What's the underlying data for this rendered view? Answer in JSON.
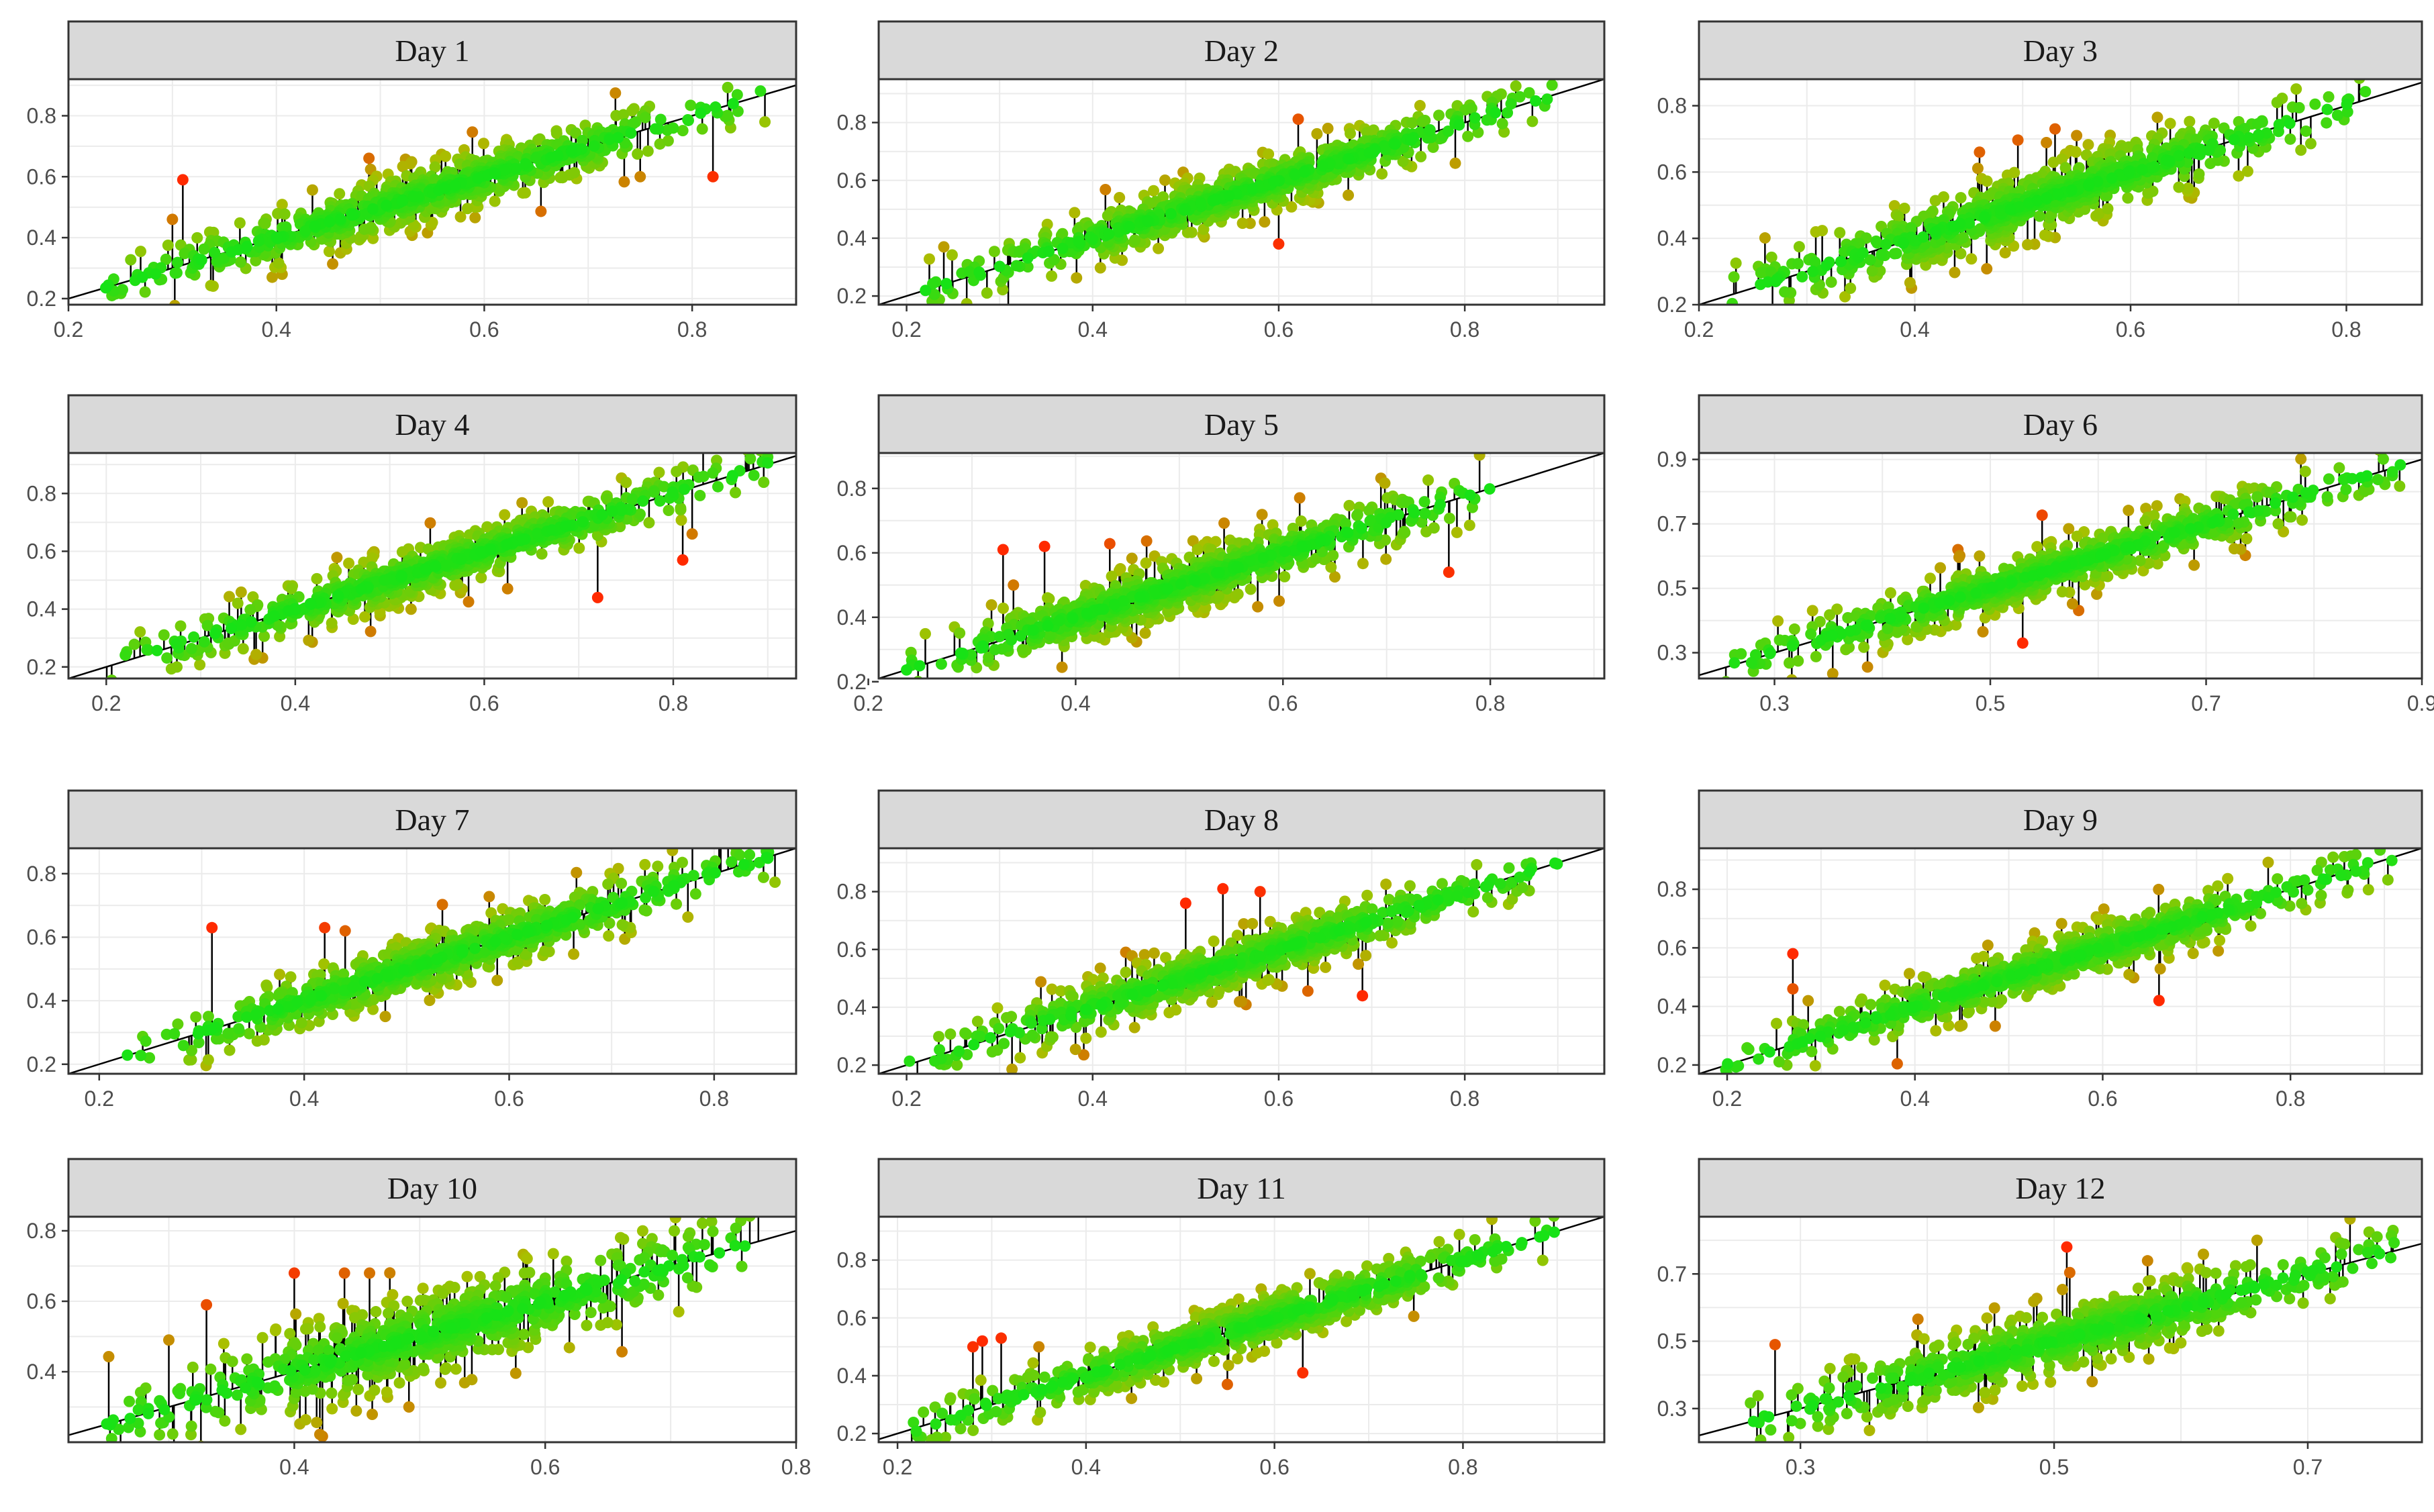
{
  "figure": {
    "type": "faceted-scatter",
    "description_colors": {
      "point_good": "#16e216",
      "point_mid": "#a8c000",
      "point_bad": "#ff2a00",
      "segment": "#000000",
      "identity_line": "#000000",
      "strip_fill": "#d9d9d9",
      "grid_major": "#ebebeb",
      "panel_border": "#333333"
    }
  },
  "chart_data": [
    {
      "type": "scatter",
      "title": "Day 1",
      "xlim": [
        0.2,
        0.9
      ],
      "ylim": [
        0.18,
        0.92
      ],
      "x_ticks": [
        0.2,
        0.4,
        0.6,
        0.8
      ],
      "x_tick_labels": [
        "0.2",
        "0.4",
        "0.6",
        "0.8"
      ],
      "y_ticks": [
        0.2,
        0.4,
        0.6,
        0.8
      ],
      "y_tick_labels": [
        "0.2",
        "0.4",
        "0.6",
        "0.8"
      ],
      "reference_line": "y = x",
      "n_points": 700,
      "spread": 0.045,
      "x_range": [
        0.23,
        0.87
      ],
      "outliers": [
        [
          0.31,
          0.59
        ],
        [
          0.82,
          0.6
        ],
        [
          0.87,
          0.78
        ],
        [
          0.75,
          0.6
        ],
        [
          0.3,
          0.46
        ]
      ]
    },
    {
      "type": "scatter",
      "title": "Day 2",
      "xlim": [
        0.17,
        0.95
      ],
      "ylim": [
        0.17,
        0.95
      ],
      "x_ticks": [
        0.2,
        0.4,
        0.6,
        0.8
      ],
      "x_tick_labels": [
        "0.2",
        "0.4",
        "0.6",
        "0.8"
      ],
      "y_ticks": [
        0.2,
        0.4,
        0.6,
        0.8
      ],
      "y_tick_labels": [
        "0.2",
        "0.4",
        "0.6",
        "0.8"
      ],
      "reference_line": "y = x",
      "n_points": 700,
      "spread": 0.045,
      "x_range": [
        0.22,
        0.9
      ],
      "outliers": [
        [
          0.6,
          0.38
        ],
        [
          0.24,
          0.37
        ],
        [
          0.47,
          0.49
        ]
      ]
    },
    {
      "type": "scatter",
      "title": "Day 3",
      "xlim": [
        0.2,
        0.87
      ],
      "ylim": [
        0.2,
        0.88
      ],
      "x_ticks": [
        0.2,
        0.4,
        0.6,
        0.8
      ],
      "x_tick_labels": [
        "0.2",
        "0.4",
        "0.6",
        "0.8"
      ],
      "y_ticks": [
        0.2,
        0.4,
        0.6,
        0.8
      ],
      "y_tick_labels": [
        "0.2",
        "0.4",
        "0.6",
        "0.8"
      ],
      "reference_line": "y = x",
      "n_points": 700,
      "spread": 0.05,
      "x_range": [
        0.23,
        0.82
      ],
      "outliers": [
        [
          0.46,
          0.66
        ],
        [
          0.53,
          0.73
        ],
        [
          0.55,
          0.71
        ]
      ]
    },
    {
      "type": "scatter",
      "title": "Day 4",
      "xlim": [
        0.16,
        0.93
      ],
      "ylim": [
        0.16,
        0.94
      ],
      "x_ticks": [
        0.2,
        0.4,
        0.6,
        0.8
      ],
      "x_tick_labels": [
        "0.2",
        "0.4",
        "0.6",
        "0.8"
      ],
      "y_ticks": [
        0.2,
        0.4,
        0.6,
        0.8
      ],
      "y_tick_labels": [
        "0.2",
        "0.4",
        "0.6",
        "0.8"
      ],
      "reference_line": "y = x",
      "n_points": 700,
      "spread": 0.045,
      "x_range": [
        0.2,
        0.9
      ],
      "outliers": [
        [
          0.72,
          0.44
        ],
        [
          0.81,
          0.57
        ],
        [
          0.82,
          0.66
        ]
      ]
    },
    {
      "type": "scatter",
      "title": "Day 5",
      "xlim": [
        0.21,
        0.91
      ],
      "ylim": [
        0.21,
        0.91
      ],
      "x_ticks": [
        0.2,
        0.4,
        0.6,
        0.8
      ],
      "x_tick_labels": [
        "0.2",
        "0.4",
        "0.6",
        "0.8"
      ],
      "y_ticks": [
        0.2,
        0.4,
        0.6,
        0.8
      ],
      "y_tick_labels": [
        "0.2",
        "0.4",
        "0.6",
        "0.8"
      ],
      "reference_line": "y = x",
      "n_points": 700,
      "spread": 0.045,
      "x_range": [
        0.23,
        0.8
      ],
      "outliers": [
        [
          0.33,
          0.61
        ],
        [
          0.37,
          0.62
        ],
        [
          0.34,
          0.5
        ],
        [
          0.76,
          0.54
        ]
      ]
    },
    {
      "type": "scatter",
      "title": "Day 6",
      "xlim": [
        0.23,
        0.9
      ],
      "ylim": [
        0.22,
        0.92
      ],
      "x_ticks": [
        0.3,
        0.5,
        0.7,
        0.9
      ],
      "x_tick_labels": [
        "0.3",
        "0.5",
        "0.7",
        "0.9"
      ],
      "y_ticks": [
        0.3,
        0.5,
        0.7,
        0.9
      ],
      "y_tick_labels": [
        "0.3",
        "0.5",
        "0.7",
        "0.9"
      ],
      "reference_line": "y = x",
      "n_points": 700,
      "spread": 0.04,
      "x_range": [
        0.25,
        0.88
      ],
      "outliers": [
        [
          0.53,
          0.33
        ],
        [
          0.47,
          0.62
        ],
        [
          0.49,
          0.6
        ]
      ]
    },
    {
      "type": "scatter",
      "title": "Day 7",
      "xlim": [
        0.17,
        0.88
      ],
      "ylim": [
        0.17,
        0.88
      ],
      "x_ticks": [
        0.2,
        0.4,
        0.6,
        0.8
      ],
      "x_tick_labels": [
        "0.2",
        "0.4",
        "0.6",
        "0.8"
      ],
      "y_ticks": [
        0.2,
        0.4,
        0.6,
        0.8
      ],
      "y_tick_labels": [
        "0.2",
        "0.4",
        "0.6",
        "0.8"
      ],
      "reference_line": "y = x",
      "n_points": 700,
      "spread": 0.045,
      "x_range": [
        0.22,
        0.86
      ],
      "outliers": [
        [
          0.31,
          0.63
        ],
        [
          0.42,
          0.63
        ],
        [
          0.44,
          0.62
        ]
      ]
    },
    {
      "type": "scatter",
      "title": "Day 8",
      "xlim": [
        0.17,
        0.95
      ],
      "ylim": [
        0.17,
        0.95
      ],
      "x_ticks": [
        0.2,
        0.4,
        0.6,
        0.8
      ],
      "x_tick_labels": [
        "0.2",
        "0.4",
        "0.6",
        "0.8"
      ],
      "y_ticks": [
        0.2,
        0.4,
        0.6,
        0.8
      ],
      "y_tick_labels": [
        "0.2",
        "0.4",
        "0.6",
        "0.8"
      ],
      "reference_line": "y = x",
      "n_points": 700,
      "spread": 0.045,
      "x_range": [
        0.2,
        0.9
      ],
      "outliers": [
        [
          0.54,
          0.81
        ],
        [
          0.58,
          0.8
        ],
        [
          0.5,
          0.76
        ],
        [
          0.69,
          0.44
        ]
      ]
    },
    {
      "type": "scatter",
      "title": "Day 9",
      "xlim": [
        0.17,
        0.94
      ],
      "ylim": [
        0.17,
        0.94
      ],
      "x_ticks": [
        0.2,
        0.4,
        0.6,
        0.8
      ],
      "x_tick_labels": [
        "0.2",
        "0.4",
        "0.6",
        "0.8"
      ],
      "y_ticks": [
        0.2,
        0.4,
        0.6,
        0.8
      ],
      "y_tick_labels": [
        "0.2",
        "0.4",
        "0.6",
        "0.8"
      ],
      "reference_line": "y = x",
      "n_points": 700,
      "spread": 0.045,
      "x_range": [
        0.19,
        0.91
      ],
      "outliers": [
        [
          0.27,
          0.58
        ],
        [
          0.27,
          0.46
        ],
        [
          0.66,
          0.42
        ]
      ]
    },
    {
      "type": "scatter",
      "title": "Day 10",
      "xlim": [
        0.22,
        0.8
      ],
      "ylim": [
        0.2,
        0.84
      ],
      "x_ticks": [
        0.4,
        0.6,
        0.8
      ],
      "x_tick_labels": [
        "0.4",
        "0.6",
        "0.8"
      ],
      "y_ticks": [
        0.4,
        0.6,
        0.8
      ],
      "y_tick_labels": [
        "0.4",
        "0.6",
        "0.8"
      ],
      "reference_line": "y = x",
      "n_points": 750,
      "spread": 0.06,
      "x_range": [
        0.25,
        0.77
      ],
      "outliers": [
        [
          0.33,
          0.59
        ],
        [
          0.4,
          0.68
        ],
        [
          0.44,
          0.68
        ],
        [
          0.46,
          0.68
        ],
        [
          0.3,
          0.49
        ]
      ]
    },
    {
      "type": "scatter",
      "title": "Day 11",
      "xlim": [
        0.18,
        0.95
      ],
      "ylim": [
        0.17,
        0.95
      ],
      "x_ticks": [
        0.2,
        0.4,
        0.6,
        0.8
      ],
      "x_tick_labels": [
        "0.2",
        "0.4",
        "0.6",
        "0.8"
      ],
      "y_ticks": [
        0.2,
        0.4,
        0.6,
        0.8
      ],
      "y_tick_labels": [
        "0.2",
        "0.4",
        "0.6",
        "0.8"
      ],
      "reference_line": "y = x",
      "n_points": 700,
      "spread": 0.045,
      "x_range": [
        0.21,
        0.9
      ],
      "outliers": [
        [
          0.29,
          0.52
        ],
        [
          0.31,
          0.53
        ],
        [
          0.28,
          0.5
        ],
        [
          0.35,
          0.5
        ],
        [
          0.55,
          0.37
        ],
        [
          0.63,
          0.41
        ]
      ]
    },
    {
      "type": "scatter",
      "title": "Day 12",
      "xlim": [
        0.22,
        0.79
      ],
      "ylim": [
        0.2,
        0.87
      ],
      "x_ticks": [
        0.3,
        0.5,
        0.7
      ],
      "x_tick_labels": [
        "0.3",
        "0.5",
        "0.7"
      ],
      "y_ticks": [
        0.3,
        0.5,
        0.7
      ],
      "y_tick_labels": [
        "0.3",
        "0.5",
        "0.7"
      ],
      "reference_line": "y = x",
      "n_points": 700,
      "spread": 0.05,
      "x_range": [
        0.26,
        0.77
      ],
      "outliers": [
        [
          0.28,
          0.49
        ],
        [
          0.51,
          0.78
        ],
        [
          0.53,
          0.38
        ],
        [
          0.66,
          0.8
        ]
      ]
    }
  ]
}
